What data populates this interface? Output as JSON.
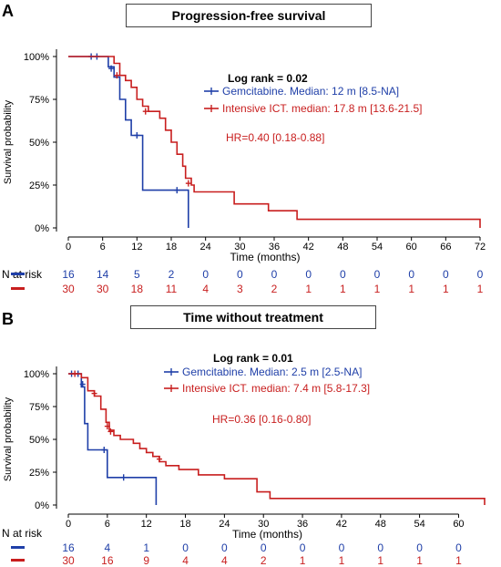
{
  "colors": {
    "blue": "#1f3fa8",
    "red": "#c81e1e",
    "axis": "#000000"
  },
  "chart_data": [
    {
      "type": "line",
      "panel_letter": "A",
      "title": "Progression-free survival",
      "xlabel": "Time (months)",
      "ylabel": "Survival probability",
      "x_ticks": [
        0,
        6,
        12,
        18,
        24,
        30,
        36,
        42,
        48,
        54,
        60,
        66,
        72
      ],
      "x_tick_labels": [
        "0",
        "6",
        "12",
        "18",
        "24",
        "30",
        "36",
        "42",
        "48",
        "54",
        "60",
        "66",
        "72"
      ],
      "y_ticks": [
        0,
        0.25,
        0.5,
        0.75,
        1.0
      ],
      "y_tick_labels": [
        "0%",
        "25%",
        "50%",
        "75%",
        "100%"
      ],
      "xlim": [
        0,
        72
      ],
      "ylim": [
        0,
        1
      ],
      "logrank": "Log rank = 0.02",
      "hr": "HR=0.40 [0.18-0.88]",
      "legend": [
        {
          "label": "Gemcitabine. Median: 12 m [8.5-NA]",
          "color": "blue"
        },
        {
          "label": "Intensive ICT. median: 17.8 m [13.6-21.5]",
          "color": "red"
        }
      ],
      "series": [
        {
          "color": "blue",
          "steps": [
            [
              0,
              1.0
            ],
            [
              7,
              1.0
            ],
            [
              7,
              0.94
            ],
            [
              8,
              0.94
            ],
            [
              8,
              0.88
            ],
            [
              9,
              0.88
            ],
            [
              9,
              0.75
            ],
            [
              10,
              0.75
            ],
            [
              10,
              0.63
            ],
            [
              11,
              0.63
            ],
            [
              11,
              0.54
            ],
            [
              13,
              0.54
            ],
            [
              13,
              0.22
            ],
            [
              21,
              0.22
            ],
            [
              21,
              0.0
            ]
          ],
          "censor": [
            [
              4,
              1.0
            ],
            [
              5,
              1.0
            ],
            [
              7.5,
              0.93
            ],
            [
              12,
              0.54
            ],
            [
              19,
              0.22
            ]
          ]
        },
        {
          "color": "red",
          "steps": [
            [
              0,
              1.0
            ],
            [
              8,
              1.0
            ],
            [
              8,
              0.96
            ],
            [
              9,
              0.96
            ],
            [
              9,
              0.89
            ],
            [
              10,
              0.89
            ],
            [
              10,
              0.86
            ],
            [
              11,
              0.86
            ],
            [
              11,
              0.82
            ],
            [
              12,
              0.82
            ],
            [
              12,
              0.75
            ],
            [
              13,
              0.75
            ],
            [
              13,
              0.71
            ],
            [
              14,
              0.71
            ],
            [
              14,
              0.68
            ],
            [
              16,
              0.68
            ],
            [
              16,
              0.64
            ],
            [
              17,
              0.64
            ],
            [
              17,
              0.57
            ],
            [
              18,
              0.57
            ],
            [
              18,
              0.5
            ],
            [
              19,
              0.5
            ],
            [
              19,
              0.43
            ],
            [
              20,
              0.43
            ],
            [
              20,
              0.36
            ],
            [
              20.5,
              0.36
            ],
            [
              20.5,
              0.29
            ],
            [
              21.5,
              0.29
            ],
            [
              21.5,
              0.25
            ],
            [
              22,
              0.25
            ],
            [
              22,
              0.21
            ],
            [
              29,
              0.21
            ],
            [
              29,
              0.14
            ],
            [
              35,
              0.14
            ],
            [
              35,
              0.1
            ],
            [
              40,
              0.1
            ],
            [
              40,
              0.05
            ],
            [
              72,
              0.05
            ],
            [
              72,
              0.0
            ]
          ],
          "censor": [
            [
              8.5,
              0.89
            ],
            [
              13.5,
              0.68
            ],
            [
              21,
              0.26
            ]
          ]
        }
      ],
      "risk": {
        "header": "N at risk",
        "rows": [
          {
            "color": "blue",
            "values": [
              "16",
              "14",
              "5",
              "2",
              "0",
              "0",
              "0",
              "0",
              "0",
              "0",
              "0",
              "0",
              "0"
            ]
          },
          {
            "color": "red",
            "values": [
              "30",
              "30",
              "18",
              "11",
              "4",
              "3",
              "2",
              "1",
              "1",
              "1",
              "1",
              "1",
              "1"
            ]
          }
        ]
      }
    },
    {
      "type": "line",
      "panel_letter": "B",
      "title": "Time without treatment",
      "xlabel": "Time (months)",
      "ylabel": "Survival probability",
      "x_ticks": [
        0,
        6,
        12,
        18,
        24,
        30,
        36,
        42,
        48,
        54,
        60
      ],
      "x_tick_labels": [
        "0",
        "6",
        "12",
        "18",
        "24",
        "30",
        "36",
        "42",
        "48",
        "54",
        "60"
      ],
      "y_ticks": [
        0,
        0.25,
        0.5,
        0.75,
        1.0
      ],
      "y_tick_labels": [
        "0%",
        "25%",
        "50%",
        "75%",
        "100%"
      ],
      "xlim": [
        0,
        64
      ],
      "ylim": [
        0,
        1
      ],
      "logrank": "Log rank = 0.01",
      "hr": "HR=0.36 [0.16-0.80]",
      "legend": [
        {
          "label": "Gemcitabine. Median: 2.5 m [2.5-NA]",
          "color": "blue"
        },
        {
          "label": "Intensive ICT. median: 7.4 m [5.8-17.3]",
          "color": "red"
        }
      ],
      "series": [
        {
          "color": "blue",
          "steps": [
            [
              0,
              1.0
            ],
            [
              2,
              1.0
            ],
            [
              2,
              0.9
            ],
            [
              2.5,
              0.9
            ],
            [
              2.5,
              0.62
            ],
            [
              3,
              0.62
            ],
            [
              3,
              0.42
            ],
            [
              6,
              0.42
            ],
            [
              6,
              0.21
            ],
            [
              13.5,
              0.21
            ],
            [
              13.5,
              0.0
            ]
          ],
          "censor": [
            [
              0.5,
              1.0
            ],
            [
              1.5,
              1.0
            ],
            [
              2.2,
              0.92
            ],
            [
              5.5,
              0.42
            ],
            [
              8.5,
              0.21
            ]
          ]
        },
        {
          "color": "red",
          "steps": [
            [
              0,
              1.0
            ],
            [
              2,
              1.0
            ],
            [
              2,
              0.97
            ],
            [
              3,
              0.97
            ],
            [
              3,
              0.87
            ],
            [
              4,
              0.87
            ],
            [
              4,
              0.83
            ],
            [
              5,
              0.83
            ],
            [
              5,
              0.73
            ],
            [
              5.8,
              0.73
            ],
            [
              5.8,
              0.63
            ],
            [
              6.3,
              0.63
            ],
            [
              6.3,
              0.57
            ],
            [
              7,
              0.57
            ],
            [
              7,
              0.53
            ],
            [
              8,
              0.53
            ],
            [
              8,
              0.5
            ],
            [
              10,
              0.5
            ],
            [
              10,
              0.47
            ],
            [
              11,
              0.47
            ],
            [
              11,
              0.43
            ],
            [
              12,
              0.43
            ],
            [
              12,
              0.4
            ],
            [
              13,
              0.4
            ],
            [
              13,
              0.37
            ],
            [
              14,
              0.37
            ],
            [
              14,
              0.33
            ],
            [
              15,
              0.33
            ],
            [
              15,
              0.3
            ],
            [
              17,
              0.3
            ],
            [
              17,
              0.27
            ],
            [
              20,
              0.27
            ],
            [
              20,
              0.23
            ],
            [
              24,
              0.23
            ],
            [
              24,
              0.2
            ],
            [
              29,
              0.2
            ],
            [
              29,
              0.1
            ],
            [
              31,
              0.1
            ],
            [
              31,
              0.05
            ],
            [
              64,
              0.05
            ],
            [
              64,
              0.0
            ]
          ],
          "censor": [
            [
              1,
              1.0
            ],
            [
              4,
              0.85
            ],
            [
              6,
              0.6
            ],
            [
              6.5,
              0.56
            ],
            [
              14,
              0.35
            ]
          ]
        }
      ],
      "risk": {
        "header": "N at risk",
        "rows": [
          {
            "color": "blue",
            "values": [
              "16",
              "4",
              "1",
              "0",
              "0",
              "0",
              "0",
              "0",
              "0",
              "0",
              "0"
            ]
          },
          {
            "color": "red",
            "values": [
              "30",
              "16",
              "9",
              "4",
              "4",
              "2",
              "1",
              "1",
              "1",
              "1",
              "1"
            ]
          }
        ]
      }
    }
  ]
}
